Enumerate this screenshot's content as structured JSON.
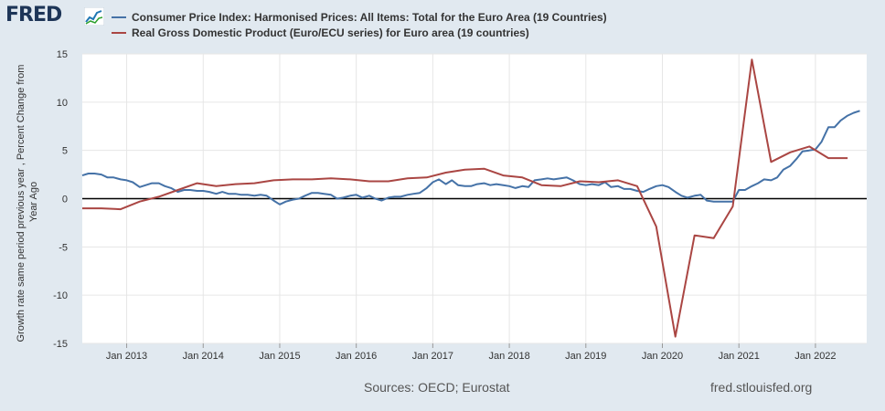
{
  "header": {
    "logo_text": "FRED"
  },
  "legend": [
    {
      "label": "Consumer Price Index: Harmonised Prices: All Items: Total for the Euro Area (19 Countries)",
      "color": "#4572a7"
    },
    {
      "label": "Real Gross Domestic Product (Euro/ECU series) for Euro area (19 countries)",
      "color": "#aa4643"
    }
  ],
  "footer": {
    "sources": "Sources: OECD; Eurostat",
    "site": "fred.stlouisfed.org"
  },
  "chart_data": {
    "type": "line",
    "ylabel": "Growth rate same period previous year , Percent Change from Year Ago",
    "ylim": [
      -15,
      15
    ],
    "yticks": [
      15,
      10,
      5,
      0,
      -5,
      -10,
      -15
    ],
    "xlim": [
      2012.42,
      2022.67
    ],
    "xticks": [
      {
        "label": "Jan 2013",
        "x": 2013.0
      },
      {
        "label": "Jan 2014",
        "x": 2014.0
      },
      {
        "label": "Jan 2015",
        "x": 2015.0
      },
      {
        "label": "Jan 2016",
        "x": 2016.0
      },
      {
        "label": "Jan 2017",
        "x": 2017.0
      },
      {
        "label": "Jan 2018",
        "x": 2018.0
      },
      {
        "label": "Jan 2019",
        "x": 2019.0
      },
      {
        "label": "Jan 2020",
        "x": 2020.0
      },
      {
        "label": "Jan 2021",
        "x": 2021.0
      },
      {
        "label": "Jan 2022",
        "x": 2022.0
      }
    ],
    "grid": true,
    "series": [
      {
        "name": "Consumer Price Index: Harmonised Prices: All Items: Total for the Euro Area (19 Countries)",
        "color": "#4572a7",
        "x": [
          2012.42,
          2012.5,
          2012.58,
          2012.67,
          2012.75,
          2012.83,
          2012.92,
          2013.0,
          2013.08,
          2013.17,
          2013.25,
          2013.33,
          2013.42,
          2013.5,
          2013.58,
          2013.67,
          2013.75,
          2013.83,
          2013.92,
          2014.0,
          2014.08,
          2014.17,
          2014.25,
          2014.33,
          2014.42,
          2014.5,
          2014.58,
          2014.67,
          2014.75,
          2014.83,
          2014.92,
          2015.0,
          2015.08,
          2015.17,
          2015.25,
          2015.33,
          2015.42,
          2015.5,
          2015.58,
          2015.67,
          2015.75,
          2015.83,
          2015.92,
          2016.0,
          2016.08,
          2016.17,
          2016.25,
          2016.33,
          2016.42,
          2016.5,
          2016.58,
          2016.67,
          2016.75,
          2016.83,
          2016.92,
          2017.0,
          2017.08,
          2017.17,
          2017.25,
          2017.33,
          2017.42,
          2017.5,
          2017.58,
          2017.67,
          2017.75,
          2017.83,
          2017.92,
          2018.0,
          2018.08,
          2018.17,
          2018.25,
          2018.33,
          2018.42,
          2018.5,
          2018.58,
          2018.67,
          2018.75,
          2018.83,
          2018.92,
          2019.0,
          2019.08,
          2019.17,
          2019.25,
          2019.33,
          2019.42,
          2019.5,
          2019.58,
          2019.67,
          2019.75,
          2019.83,
          2019.92,
          2020.0,
          2020.08,
          2020.17,
          2020.25,
          2020.33,
          2020.42,
          2020.5,
          2020.58,
          2020.67,
          2020.75,
          2020.83,
          2020.92,
          2021.0,
          2021.08,
          2021.17,
          2021.25,
          2021.33,
          2021.42,
          2021.5,
          2021.58,
          2021.67,
          2021.75,
          2021.83,
          2021.92,
          2022.0,
          2022.08,
          2022.17,
          2022.25,
          2022.33,
          2022.42,
          2022.5,
          2022.58
        ],
        "values": [
          2.4,
          2.6,
          2.6,
          2.5,
          2.2,
          2.2,
          2.0,
          1.9,
          1.7,
          1.2,
          1.4,
          1.6,
          1.6,
          1.3,
          1.1,
          0.7,
          0.9,
          0.9,
          0.8,
          0.8,
          0.7,
          0.5,
          0.7,
          0.5,
          0.5,
          0.4,
          0.4,
          0.3,
          0.4,
          0.3,
          -0.2,
          -0.6,
          -0.3,
          -0.1,
          0.0,
          0.3,
          0.6,
          0.6,
          0.5,
          0.4,
          0.0,
          0.1,
          0.3,
          0.4,
          0.1,
          0.3,
          0.0,
          -0.2,
          0.1,
          0.2,
          0.2,
          0.4,
          0.5,
          0.6,
          1.1,
          1.7,
          2.0,
          1.5,
          1.9,
          1.4,
          1.3,
          1.3,
          1.5,
          1.6,
          1.4,
          1.5,
          1.4,
          1.3,
          1.1,
          1.3,
          1.2,
          1.9,
          2.0,
          2.1,
          2.0,
          2.1,
          2.2,
          1.9,
          1.5,
          1.4,
          1.5,
          1.4,
          1.7,
          1.2,
          1.3,
          1.0,
          1.0,
          0.8,
          0.7,
          1.0,
          1.3,
          1.4,
          1.2,
          0.7,
          0.3,
          0.1,
          0.3,
          0.4,
          -0.2,
          -0.3,
          -0.3,
          -0.3,
          -0.3,
          0.9,
          0.9,
          1.3,
          1.6,
          2.0,
          1.9,
          2.2,
          3.0,
          3.4,
          4.1,
          4.9,
          5.0,
          5.1,
          5.9,
          7.4,
          7.4,
          8.1,
          8.6,
          8.9,
          9.1
        ]
      },
      {
        "name": "Real Gross Domestic Product (Euro/ECU series) for Euro area (19 countries)",
        "color": "#aa4643",
        "x": [
          2012.42,
          2012.67,
          2012.92,
          2013.17,
          2013.42,
          2013.67,
          2013.92,
          2014.17,
          2014.42,
          2014.67,
          2014.92,
          2015.17,
          2015.42,
          2015.67,
          2015.92,
          2016.17,
          2016.42,
          2016.67,
          2016.92,
          2017.17,
          2017.42,
          2017.67,
          2017.92,
          2018.17,
          2018.42,
          2018.67,
          2018.92,
          2019.17,
          2019.42,
          2019.67,
          2019.92,
          2020.17,
          2020.42,
          2020.67,
          2020.92,
          2021.17,
          2021.42,
          2021.67,
          2021.92,
          2022.17,
          2022.42
        ],
        "values": [
          -1.0,
          -1.0,
          -1.1,
          -0.3,
          0.2,
          0.9,
          1.6,
          1.3,
          1.5,
          1.6,
          1.9,
          2.0,
          2.0,
          2.1,
          2.0,
          1.8,
          1.8,
          2.1,
          2.2,
          2.7,
          3.0,
          3.1,
          2.4,
          2.2,
          1.4,
          1.3,
          1.8,
          1.7,
          1.9,
          1.3,
          -2.9,
          -14.3,
          -3.8,
          -4.1,
          -0.8,
          14.4,
          3.8,
          4.8,
          5.4,
          4.2,
          4.2
        ]
      }
    ]
  }
}
